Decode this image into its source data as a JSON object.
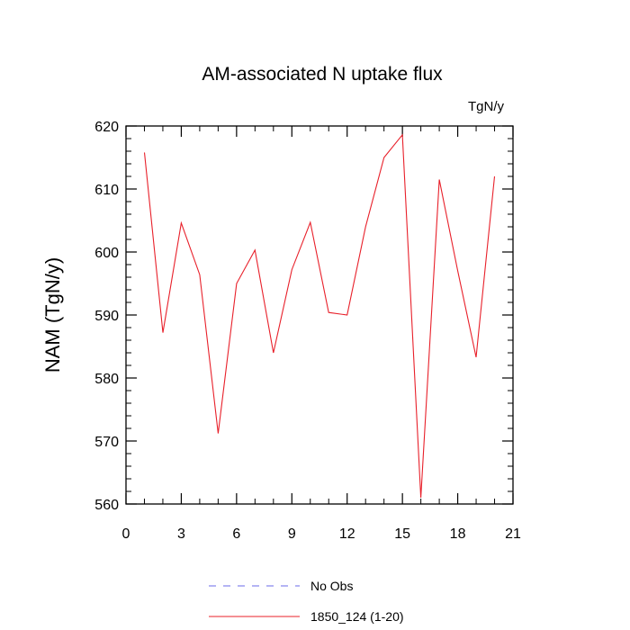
{
  "chart_data": {
    "type": "line",
    "title": "AM-associated N uptake flux",
    "units_label": "TgN/y",
    "ylabel": "NAM  (TgN/y)",
    "xlabel": "",
    "xlim": [
      0,
      21
    ],
    "ylim": [
      560,
      620
    ],
    "x_ticks": [
      0,
      3,
      6,
      9,
      12,
      15,
      18,
      21
    ],
    "y_ticks": [
      560,
      570,
      580,
      590,
      600,
      610,
      620
    ],
    "grid": false,
    "legend_position": "bottom",
    "series": [
      {
        "name": "1850_124 (1-20)",
        "color": "#e8202a",
        "style": "solid",
        "x": [
          1,
          2,
          3,
          4,
          5,
          6,
          7,
          8,
          9,
          10,
          11,
          12,
          13,
          14,
          15,
          16,
          17,
          18,
          19,
          20
        ],
        "values": [
          615.8,
          587.2,
          604.6,
          596.4,
          571.2,
          595.0,
          600.3,
          584.0,
          597.2,
          604.7,
          590.4,
          590.0,
          604.0,
          615.0,
          618.6,
          561.0,
          611.5,
          597.0,
          583.3,
          612.0
        ]
      }
    ],
    "legend": [
      {
        "label": "No Obs",
        "color": "#6a6ae8",
        "style": "dashed"
      },
      {
        "label": "1850_124 (1-20)",
        "color": "#e8202a",
        "style": "solid"
      }
    ]
  }
}
